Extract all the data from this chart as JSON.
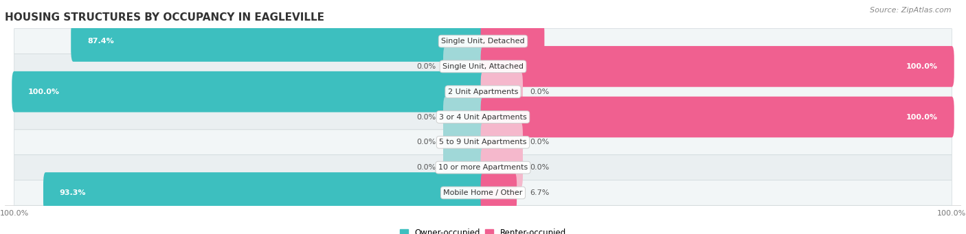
{
  "title": "HOUSING STRUCTURES BY OCCUPANCY IN EAGLEVILLE",
  "source": "Source: ZipAtlas.com",
  "categories": [
    "Single Unit, Detached",
    "Single Unit, Attached",
    "2 Unit Apartments",
    "3 or 4 Unit Apartments",
    "5 to 9 Unit Apartments",
    "10 or more Apartments",
    "Mobile Home / Other"
  ],
  "owner_pct": [
    87.4,
    0.0,
    100.0,
    0.0,
    0.0,
    0.0,
    93.3
  ],
  "renter_pct": [
    12.6,
    100.0,
    0.0,
    100.0,
    0.0,
    0.0,
    6.7
  ],
  "owner_color": "#3dbfbf",
  "renter_color": "#f06090",
  "owner_color_light": "#a0d8d8",
  "renter_color_light": "#f5b8cc",
  "row_bg_odd": "#f0f4f5",
  "row_bg_even": "#e8eef0",
  "title_fontsize": 11,
  "source_fontsize": 8,
  "label_fontsize": 8,
  "category_fontsize": 8,
  "axis_label_fontsize": 8,
  "figsize": [
    14.06,
    3.41
  ],
  "dpi": 100
}
